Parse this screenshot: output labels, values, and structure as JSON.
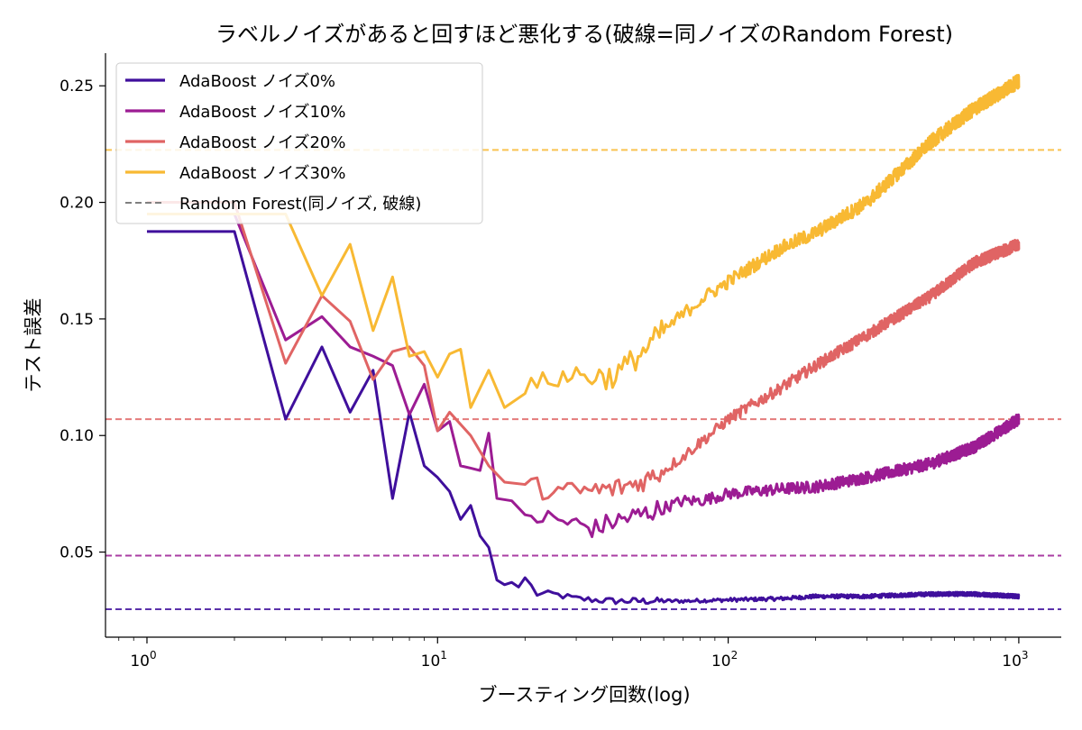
{
  "chart_data": {
    "type": "line",
    "title": "ラベルノイズがあると回すほど悪化する(破線=同ノイズのRandom Forest)",
    "xlabel": "ブースティング回数(log)",
    "ylabel": "テスト誤差",
    "xscale": "log",
    "xlim": [
      0.72,
      1400
    ],
    "ylim": [
      0.0135,
      0.264
    ],
    "x_ticks": [
      {
        "value": 1,
        "base": "10",
        "exp": "0"
      },
      {
        "value": 10,
        "base": "10",
        "exp": "1"
      },
      {
        "value": 100,
        "base": "10",
        "exp": "2"
      },
      {
        "value": 1000,
        "base": "10",
        "exp": "3"
      }
    ],
    "y_ticks": [
      {
        "value": 0.05,
        "label": "0.05"
      },
      {
        "value": 0.1,
        "label": "0.10"
      },
      {
        "value": 0.15,
        "label": "0.15"
      },
      {
        "value": 0.2,
        "label": "0.20"
      },
      {
        "value": 0.25,
        "label": "0.25"
      }
    ],
    "grid": false,
    "legend_position": "top-left",
    "series": [
      {
        "name": "AdaBoost ノイズ0%",
        "color": "#3f0f9c",
        "style": "solid",
        "points": [
          [
            1,
            0.1875
          ],
          [
            2,
            0.1875
          ],
          [
            3,
            0.107
          ],
          [
            4,
            0.138
          ],
          [
            5,
            0.11
          ],
          [
            6,
            0.128
          ],
          [
            7,
            0.073
          ],
          [
            8,
            0.11
          ],
          [
            9,
            0.087
          ],
          [
            10,
            0.082
          ],
          [
            11,
            0.076
          ],
          [
            12,
            0.064
          ],
          [
            13,
            0.07
          ],
          [
            14,
            0.057
          ],
          [
            15,
            0.052
          ],
          [
            16,
            0.038
          ],
          [
            17,
            0.036
          ],
          [
            18,
            0.037
          ],
          [
            19,
            0.035
          ],
          [
            20,
            0.039
          ],
          [
            22,
            0.032
          ],
          [
            25,
            0.032
          ],
          [
            30,
            0.03
          ],
          [
            40,
            0.029
          ],
          [
            50,
            0.029
          ],
          [
            70,
            0.029
          ],
          [
            100,
            0.0295
          ],
          [
            150,
            0.03
          ],
          [
            200,
            0.031
          ],
          [
            300,
            0.031
          ],
          [
            500,
            0.032
          ],
          [
            700,
            0.032
          ],
          [
            1000,
            0.031
          ]
        ],
        "noise": 0.0008
      },
      {
        "name": "AdaBoost ノイズ10%",
        "color": "#9c1c93",
        "style": "solid",
        "points": [
          [
            1,
            0.195
          ],
          [
            2,
            0.195
          ],
          [
            3,
            0.141
          ],
          [
            4,
            0.151
          ],
          [
            5,
            0.138
          ],
          [
            6,
            0.134
          ],
          [
            7,
            0.13
          ],
          [
            8,
            0.109
          ],
          [
            9,
            0.122
          ],
          [
            10,
            0.102
          ],
          [
            11,
            0.106
          ],
          [
            12,
            0.087
          ],
          [
            13,
            0.086
          ],
          [
            14,
            0.085
          ],
          [
            15,
            0.101
          ],
          [
            16,
            0.073
          ],
          [
            18,
            0.072
          ],
          [
            20,
            0.066
          ],
          [
            25,
            0.064
          ],
          [
            30,
            0.062
          ],
          [
            35,
            0.06
          ],
          [
            40,
            0.063
          ],
          [
            50,
            0.066
          ],
          [
            60,
            0.069
          ],
          [
            70,
            0.072
          ],
          [
            80,
            0.072
          ],
          [
            100,
            0.075
          ],
          [
            150,
            0.077
          ],
          [
            200,
            0.078
          ],
          [
            300,
            0.082
          ],
          [
            500,
            0.088
          ],
          [
            700,
            0.095
          ],
          [
            1000,
            0.107
          ]
        ],
        "noise": 0.0025
      },
      {
        "name": "AdaBoost ノイズ20%",
        "color": "#e06464",
        "style": "solid",
        "points": [
          [
            1,
            0.2
          ],
          [
            2,
            0.2
          ],
          [
            3,
            0.131
          ],
          [
            4,
            0.16
          ],
          [
            5,
            0.149
          ],
          [
            6,
            0.124
          ],
          [
            7,
            0.136
          ],
          [
            8,
            0.138
          ],
          [
            9,
            0.13
          ],
          [
            10,
            0.102
          ],
          [
            11,
            0.11
          ],
          [
            13,
            0.1
          ],
          [
            15,
            0.087
          ],
          [
            17,
            0.08
          ],
          [
            20,
            0.079
          ],
          [
            25,
            0.076
          ],
          [
            30,
            0.076
          ],
          [
            40,
            0.077
          ],
          [
            50,
            0.08
          ],
          [
            60,
            0.085
          ],
          [
            70,
            0.091
          ],
          [
            80,
            0.097
          ],
          [
            90,
            0.102
          ],
          [
            100,
            0.107
          ],
          [
            150,
            0.12
          ],
          [
            200,
            0.13
          ],
          [
            300,
            0.143
          ],
          [
            500,
            0.16
          ],
          [
            700,
            0.174
          ],
          [
            1000,
            0.182
          ]
        ],
        "noise": 0.0025
      },
      {
        "name": "AdaBoost ノイズ30%",
        "color": "#f8b933",
        "style": "solid",
        "points": [
          [
            1,
            0.195
          ],
          [
            2,
            0.195
          ],
          [
            3,
            0.195
          ],
          [
            4,
            0.16
          ],
          [
            5,
            0.182
          ],
          [
            6,
            0.145
          ],
          [
            7,
            0.168
          ],
          [
            8,
            0.134
          ],
          [
            9,
            0.136
          ],
          [
            10,
            0.125
          ],
          [
            11,
            0.135
          ],
          [
            12,
            0.137
          ],
          [
            13,
            0.112
          ],
          [
            15,
            0.128
          ],
          [
            17,
            0.112
          ],
          [
            20,
            0.118
          ],
          [
            25,
            0.125
          ],
          [
            30,
            0.126
          ],
          [
            40,
            0.125
          ],
          [
            50,
            0.135
          ],
          [
            60,
            0.145
          ],
          [
            70,
            0.152
          ],
          [
            80,
            0.158
          ],
          [
            100,
            0.166
          ],
          [
            150,
            0.18
          ],
          [
            200,
            0.187
          ],
          [
            300,
            0.2
          ],
          [
            500,
            0.226
          ],
          [
            700,
            0.24
          ],
          [
            1000,
            0.252
          ]
        ],
        "noise": 0.003
      },
      {
        "name": "",
        "color": "#3f0f9c",
        "style": "dashed",
        "hline": 0.0255
      },
      {
        "name": "",
        "color": "#9c1c93",
        "style": "dashed",
        "hline": 0.0485
      },
      {
        "name": "",
        "color": "#e06464",
        "style": "dashed",
        "hline": 0.107
      },
      {
        "name": "",
        "color": "#f8b933",
        "style": "dashed",
        "hline": 0.2225
      }
    ],
    "legend": [
      {
        "label": "AdaBoost ノイズ0%",
        "color": "#3f0f9c",
        "style": "solid"
      },
      {
        "label": "AdaBoost ノイズ10%",
        "color": "#9c1c93",
        "style": "solid"
      },
      {
        "label": "AdaBoost ノイズ20%",
        "color": "#e06464",
        "style": "solid"
      },
      {
        "label": "AdaBoost ノイズ30%",
        "color": "#f8b933",
        "style": "solid"
      },
      {
        "label": "Random Forest(同ノイズ, 破線)",
        "color": "#808080",
        "style": "dashed"
      }
    ]
  }
}
